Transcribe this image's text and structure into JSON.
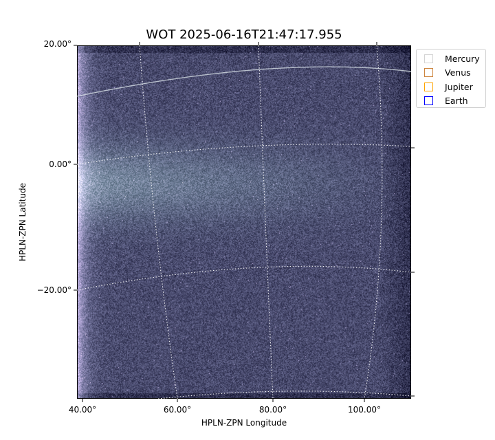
{
  "chart_data": {
    "type": "heatmap",
    "title": "WOT 2025-06-16T21:47:17.955",
    "xlabel": "HPLN-ZPN Longitude",
    "ylabel": "HPLN-ZPN Latitude",
    "x_ticks": [
      "40.00°",
      "60.00°",
      "80.00°",
      "100.00°"
    ],
    "y_ticks": [
      "20.00°",
      "0.00°",
      "−20.00°"
    ],
    "colormap": "bone",
    "grid": true,
    "legend_placement": "outside-right-top",
    "legend": [
      {
        "name": "Mercury",
        "color": "#d3d3d3"
      },
      {
        "name": "Venus",
        "color": "#cd853f"
      },
      {
        "name": "Jupiter",
        "color": "#ffa500"
      },
      {
        "name": "Earth",
        "color": "#0000ff"
      }
    ]
  }
}
